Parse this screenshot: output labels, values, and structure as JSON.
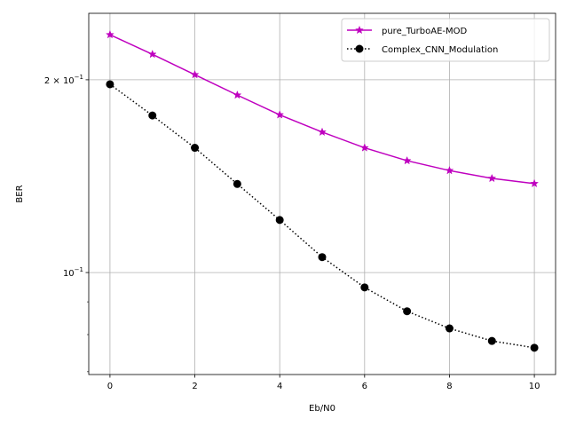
{
  "chart_data": {
    "type": "line",
    "xlabel": "Eb/N0",
    "ylabel": "BER",
    "y_scale": "log",
    "grid": true,
    "legend_position": "top-right",
    "xlim": [
      -0.5,
      10.5
    ],
    "ylim": [
      0.0693,
      0.254
    ],
    "x_ticks": [
      0,
      2,
      4,
      6,
      8,
      10
    ],
    "x_tick_labels": [
      "0",
      "2",
      "4",
      "6",
      "8",
      "10"
    ],
    "y_major_ticks": [
      {
        "value": 0.1,
        "base": "10",
        "exp": "−1",
        "prefix": ""
      },
      {
        "value": 0.2,
        "base": "10",
        "exp": "−1",
        "prefix": "2 × "
      }
    ],
    "y_minor_ticks": [
      0.07,
      0.08,
      0.09
    ],
    "x": [
      0,
      1,
      2,
      3,
      4,
      5,
      6,
      7,
      8,
      9,
      10
    ],
    "series": [
      {
        "name": "pure_TurboAE-MOD",
        "color": "#bf00bf",
        "linestyle": "solid",
        "marker": "star",
        "values": [
          0.2352,
          0.2192,
          0.2037,
          0.1893,
          0.1763,
          0.1657,
          0.1566,
          0.1495,
          0.1443,
          0.1403,
          0.1377
        ]
      },
      {
        "name": "Complex_CNN_Modulation",
        "color": "#000000",
        "linestyle": "dotted",
        "marker": "circle",
        "values": [
          0.1968,
          0.1759,
          0.1566,
          0.1375,
          0.1208,
          0.1057,
          0.0948,
          0.087,
          0.0818,
          0.0782,
          0.0763
        ]
      }
    ]
  }
}
